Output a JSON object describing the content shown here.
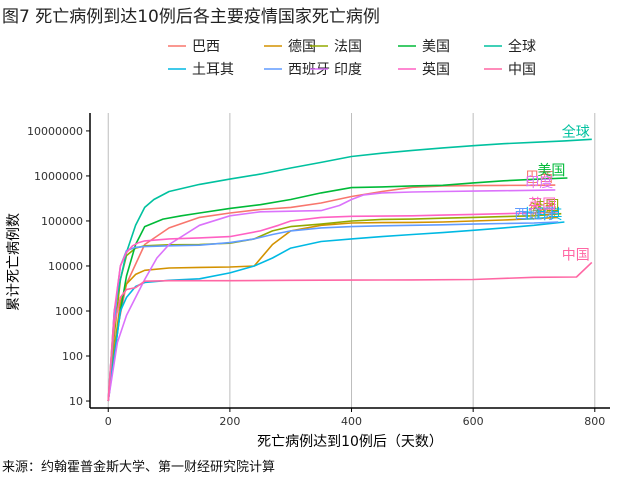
{
  "figure_title": "图7 死亡病例到达10例后各主要疫情国家死亡病例",
  "source_note": "来源：约翰霍普金斯大学、第一财经研究院计算",
  "chart_data": {
    "type": "line",
    "xlabel": "死亡病例达到10例后（天数）",
    "ylabel": "累计死亡病例数",
    "y_scale": "log10",
    "xlim": [
      -30,
      825
    ],
    "ylim": [
      7,
      25000000
    ],
    "x_ticks": [
      0,
      200,
      400,
      600,
      800
    ],
    "x_tick_labels": [
      "0",
      "200",
      "400",
      "600",
      "800"
    ],
    "y_ticks": [
      10,
      100,
      1000,
      10000,
      100000,
      1000000,
      10000000
    ],
    "y_tick_labels": [
      "10",
      "100",
      "1000",
      "10000",
      "100000",
      "1000000",
      "10000000"
    ],
    "grid": "vertical major lines",
    "legend_position": "top",
    "series": [
      {
        "name": "巴西",
        "color": "#F8766D",
        "end_label": "巴西",
        "x": [
          0,
          15,
          30,
          60,
          100,
          150,
          200,
          250,
          300,
          350,
          400,
          450,
          500,
          550,
          600,
          650,
          700,
          735
        ],
        "y": [
          10,
          400,
          4000,
          30000,
          70000,
          120000,
          150000,
          180000,
          200000,
          250000,
          350000,
          450000,
          560000,
          600000,
          610000,
          615000,
          620000,
          625000
        ]
      },
      {
        "name": "德国",
        "color": "#D39200",
        "end_label": "德国",
        "x": [
          0,
          10,
          20,
          30,
          45,
          60,
          100,
          150,
          200,
          240,
          270,
          300,
          350,
          400,
          450,
          500,
          550,
          600,
          650,
          700,
          740
        ],
        "y": [
          10,
          150,
          1500,
          4000,
          6500,
          8000,
          9000,
          9300,
          9500,
          10000,
          30000,
          60000,
          80000,
          90000,
          92000,
          93000,
          95000,
          100000,
          105000,
          112000,
          120000
        ]
      },
      {
        "name": "法国",
        "color": "#93AA00",
        "end_label": "法国",
        "x": [
          0,
          10,
          20,
          30,
          45,
          60,
          100,
          150,
          200,
          240,
          270,
          300,
          350,
          400,
          450,
          500,
          550,
          600,
          650,
          700,
          745
        ],
        "y": [
          10,
          300,
          5000,
          17000,
          25000,
          28000,
          29500,
          30000,
          32000,
          40000,
          60000,
          75000,
          85000,
          100000,
          108000,
          110000,
          115000,
          120000,
          125000,
          130000,
          145000
        ]
      },
      {
        "name": "美国",
        "color": "#00BA38",
        "end_label": "美国",
        "x": [
          0,
          10,
          20,
          30,
          45,
          60,
          90,
          120,
          150,
          200,
          250,
          300,
          350,
          400,
          450,
          500,
          550,
          600,
          650,
          700,
          755
        ],
        "y": [
          10,
          100,
          1000,
          6000,
          30000,
          75000,
          110000,
          130000,
          150000,
          190000,
          230000,
          300000,
          420000,
          550000,
          570000,
          600000,
          620000,
          700000,
          780000,
          840000,
          900000
        ]
      },
      {
        "name": "全球",
        "color": "#00C19F",
        "end_label": "全球",
        "x": [
          0,
          5,
          10,
          20,
          30,
          45,
          60,
          75,
          100,
          150,
          200,
          250,
          300,
          350,
          400,
          450,
          500,
          550,
          600,
          650,
          700,
          750,
          795
        ],
        "y": [
          10,
          100,
          1000,
          5000,
          20000,
          80000,
          200000,
          300000,
          450000,
          650000,
          850000,
          1100000,
          1500000,
          2000000,
          2700000,
          3200000,
          3700000,
          4200000,
          4700000,
          5200000,
          5600000,
          6000000,
          6500000
        ]
      },
      {
        "name": "土耳其",
        "color": "#00B9E3",
        "end_label": "土耳其",
        "x": [
          0,
          10,
          20,
          30,
          45,
          60,
          100,
          150,
          200,
          240,
          270,
          300,
          350,
          400,
          450,
          500,
          550,
          600,
          650,
          700,
          750
        ],
        "y": [
          10,
          100,
          1000,
          2000,
          3500,
          4300,
          4800,
          5200,
          7000,
          10000,
          15000,
          25000,
          35000,
          40000,
          45000,
          50000,
          55000,
          62000,
          70000,
          80000,
          95000
        ]
      },
      {
        "name": "西班牙",
        "color": "#619CFF",
        "end_label": "西班牙",
        "x": [
          0,
          10,
          15,
          20,
          30,
          45,
          60,
          100,
          150,
          200,
          240,
          270,
          300,
          350,
          400,
          450,
          500,
          550,
          600,
          650,
          700,
          740
        ],
        "y": [
          10,
          500,
          3000,
          10000,
          22000,
          26000,
          27000,
          28000,
          29000,
          33000,
          40000,
          50000,
          60000,
          70000,
          75000,
          78000,
          80000,
          82000,
          85000,
          88000,
          90000,
          95000
        ]
      },
      {
        "name": "印度",
        "color": "#DB72FB",
        "end_label": "印度",
        "x": [
          0,
          15,
          30,
          45,
          60,
          80,
          100,
          150,
          200,
          250,
          300,
          350,
          380,
          400,
          420,
          450,
          500,
          550,
          600,
          650,
          700,
          735
        ],
        "y": [
          10,
          200,
          800,
          2000,
          5000,
          15000,
          30000,
          80000,
          130000,
          160000,
          165000,
          170000,
          220000,
          300000,
          380000,
          420000,
          440000,
          450000,
          460000,
          470000,
          480000,
          490000
        ]
      },
      {
        "name": "英国",
        "color": "#FF61C3",
        "end_label": "英国",
        "x": [
          0,
          10,
          20,
          30,
          40,
          50,
          60,
          100,
          150,
          200,
          250,
          280,
          300,
          350,
          400,
          450,
          500,
          550,
          600,
          650,
          700,
          740
        ],
        "y": [
          10,
          1000,
          10000,
          20000,
          28000,
          33000,
          36000,
          40000,
          42000,
          45000,
          60000,
          80000,
          100000,
          120000,
          127000,
          128000,
          130000,
          135000,
          140000,
          145000,
          150000,
          160000
        ]
      },
      {
        "name": "中国",
        "color": "#FF67A4",
        "end_label": "中国",
        "x": [
          0,
          5,
          10,
          15,
          20,
          30,
          45,
          60,
          100,
          200,
          300,
          400,
          500,
          600,
          700,
          770,
          795
        ],
        "y": [
          10,
          100,
          500,
          1000,
          2000,
          3000,
          3300,
          4600,
          4700,
          4700,
          4800,
          4850,
          4900,
          5000,
          5600,
          5700,
          12000
        ]
      }
    ]
  }
}
